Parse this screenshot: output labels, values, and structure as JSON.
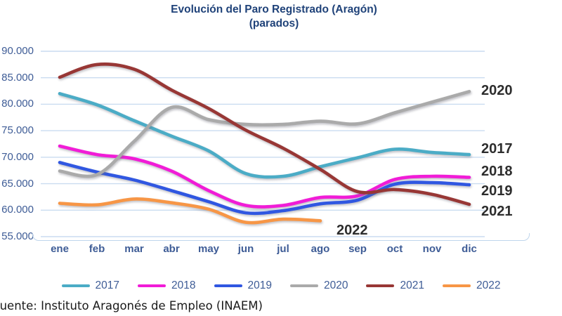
{
  "title": {
    "line1": "Evolución del Paro Registrado (Aragón)",
    "line2": "(parados)"
  },
  "source": "Fuente: Instituto Aragonés de Empleo (INAEM)",
  "chart_data": {
    "type": "line",
    "title": "Evolución del Paro Registrado (Aragón) (parados)",
    "xlabel": "",
    "ylabel": "parados",
    "categories": [
      "ene",
      "feb",
      "mar",
      "abr",
      "may",
      "jun",
      "jul",
      "ago",
      "sep",
      "oct",
      "nov",
      "dic"
    ],
    "y_tick_labels": [
      "90.000",
      "85.000",
      "80.000",
      "75.000",
      "70.000",
      "65.000",
      "60.000",
      "55.000"
    ],
    "ylim": [
      55000,
      90000
    ],
    "grid": "horizontal",
    "legend_position": "bottom",
    "line_style": "smooth",
    "series": [
      {
        "name": "2017",
        "color": "#4bacc6",
        "values": [
          82000,
          79900,
          76900,
          74000,
          71200,
          66900,
          66400,
          68200,
          69900,
          71500,
          70900,
          70500
        ]
      },
      {
        "name": "2018",
        "color": "#f11cd7",
        "values": [
          72100,
          70500,
          69700,
          67400,
          63700,
          60900,
          60900,
          62400,
          62700,
          65800,
          66400,
          66200
        ]
      },
      {
        "name": "2019",
        "color": "#3057e1",
        "values": [
          69000,
          67200,
          65700,
          63700,
          61600,
          59500,
          59900,
          61200,
          61900,
          64900,
          65200,
          64800
        ]
      },
      {
        "name": "2020",
        "color": "#aaaaaa",
        "values": [
          67400,
          66700,
          73000,
          79400,
          77100,
          76200,
          76200,
          76800,
          76300,
          78400,
          80400,
          82400
        ]
      },
      {
        "name": "2021",
        "color": "#983735",
        "values": [
          85100,
          87500,
          86600,
          82700,
          79200,
          75100,
          71700,
          67700,
          63500,
          63900,
          63000,
          61100
        ]
      },
      {
        "name": "2022",
        "color": "#f79646",
        "values": [
          61300,
          61000,
          62100,
          61400,
          60200,
          57700,
          58300,
          58000
        ]
      }
    ]
  }
}
